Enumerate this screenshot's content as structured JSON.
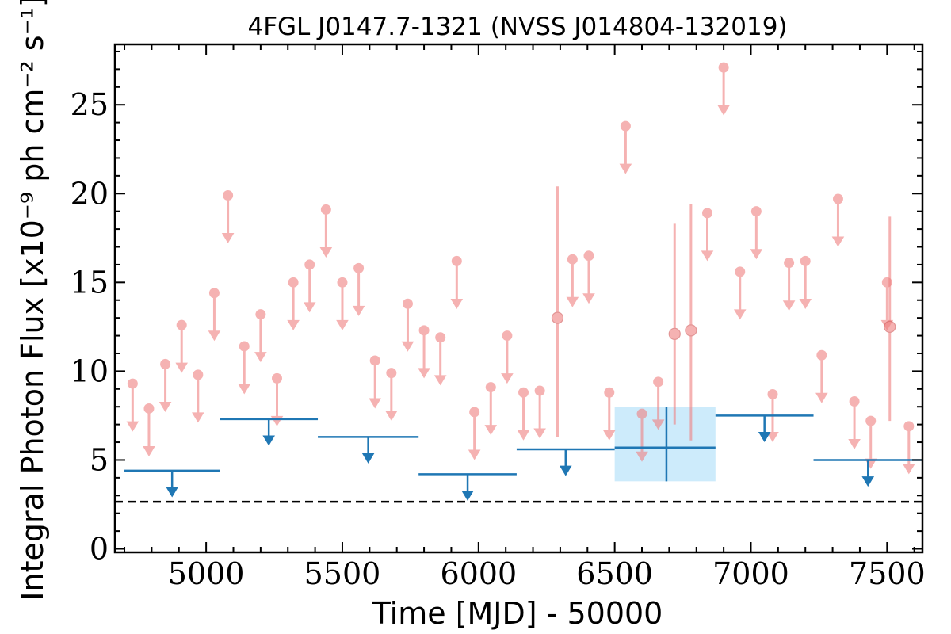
{
  "chart_data": {
    "type": "scatter",
    "title": "4FGL J0147.7-1321 (NVSS J014804-132019)",
    "xlabel": "Time [MJD] - 50000",
    "ylabel": "Integral Photon Flux [x10⁻⁹ ph cm⁻² s⁻¹]",
    "xlim": [
      4665,
      7630
    ],
    "ylim": [
      -0.2,
      28.4
    ],
    "xticks": [
      5000,
      5500,
      6000,
      6500,
      7000,
      7500
    ],
    "yticks": [
      0,
      5,
      10,
      15,
      20,
      25
    ],
    "grid": false,
    "reference_line": {
      "y": 2.65,
      "style": "dashed",
      "color": "#000000"
    },
    "colors": {
      "short_bins": "#f08080",
      "long_bins": "#1f77b4",
      "highlight": "#cdebfb"
    },
    "series": [
      {
        "kind": "short_bin_upper_limits",
        "x": [
          4730,
          4790,
          4850,
          4910,
          4970,
          5030,
          5080,
          5140,
          5200,
          5260,
          5320,
          5380,
          5440,
          5500,
          5560,
          5620,
          5680,
          5740,
          5800,
          5860,
          5920,
          5985,
          6045,
          6105,
          6165,
          6225,
          6345,
          6405,
          6480,
          6540,
          6600,
          6660,
          6840,
          6900,
          6960,
          7020,
          7080,
          7140,
          7200,
          7260,
          7320,
          7380,
          7440,
          7500,
          7580
        ],
        "y": [
          9.3,
          7.9,
          10.4,
          12.6,
          9.8,
          14.4,
          19.9,
          11.4,
          13.2,
          9.6,
          15.0,
          16.0,
          19.1,
          15.0,
          15.8,
          10.6,
          9.9,
          13.8,
          12.3,
          11.9,
          16.2,
          7.7,
          9.1,
          12.0,
          8.8,
          8.9,
          16.3,
          16.5,
          8.8,
          23.8,
          7.6,
          9.4,
          18.9,
          27.1,
          15.6,
          19.0,
          8.7,
          16.1,
          16.2,
          10.9,
          19.7,
          8.3,
          7.2,
          15.0,
          6.9
        ]
      },
      {
        "kind": "short_bin_detections",
        "x": [
          6290,
          6720,
          6780,
          7510
        ],
        "y": [
          13.0,
          12.1,
          12.3,
          12.5
        ],
        "yerr_low": [
          6.3,
          7.0,
          6.1,
          7.2
        ],
        "yerr_high": [
          20.4,
          18.3,
          19.4,
          18.7
        ]
      },
      {
        "kind": "long_bin_upper_limits",
        "x_start": [
          4700,
          5050,
          5410,
          5780,
          6140,
          7230
        ],
        "x_end": [
          5050,
          5410,
          5780,
          6140,
          6500,
          7630
        ],
        "y": [
          4.4,
          7.3,
          6.3,
          4.2,
          5.6,
          5.0
        ]
      },
      {
        "kind": "long_bin_detection",
        "x_start": [
          6500
        ],
        "x_end": [
          6870
        ],
        "x_center": [
          6690
        ],
        "y": [
          5.7
        ],
        "yerr_low": [
          3.8
        ],
        "yerr_high": [
          8.0
        ]
      },
      {
        "kind": "long_bin_upper_limits",
        "x_start": [
          6870
        ],
        "x_end": [
          7230
        ],
        "y": [
          7.5
        ]
      }
    ]
  }
}
